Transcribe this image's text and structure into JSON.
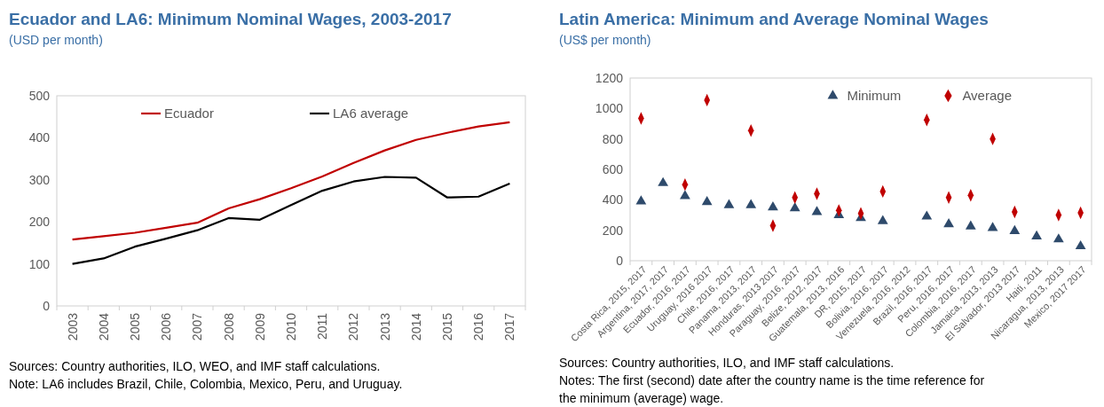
{
  "chart_data": [
    {
      "type": "line",
      "title": "Ecuador and LA6: Minimum Nominal Wages, 2003-2017",
      "subtitle": "(USD per month)",
      "categories": [
        "2003",
        "2004",
        "2005",
        "2006",
        "2007",
        "2008",
        "2009",
        "2010",
        "2011",
        "2012",
        "2013",
        "2014",
        "2015",
        "2016",
        "2017"
      ],
      "series": [
        {
          "name": "Ecuador",
          "color": "#c00000",
          "values": [
            158,
            166,
            174,
            186,
            198,
            232,
            254,
            280,
            308,
            340,
            370,
            395,
            412,
            427,
            437
          ]
        },
        {
          "name": "LA6 average",
          "color": "#000000",
          "values": [
            100,
            113,
            141,
            160,
            180,
            209,
            205,
            240,
            274,
            296,
            307,
            305,
            258,
            260,
            291
          ]
        }
      ],
      "ylim": [
        0,
        500
      ],
      "yticks": [
        0,
        100,
        200,
        300,
        400,
        500
      ],
      "grid": false,
      "legend": "top",
      "marker": "none",
      "annotations": [
        "Sources: Country authorities, ILO, WEO, and IMF staff calculations.",
        "Note: LA6 includes Brazil, Chile, Colombia, Mexico, Peru, and Uruguay."
      ]
    },
    {
      "type": "scatter",
      "title": "Latin America: Minimum and Average Nominal Wages",
      "subtitle": "(US$ per month)",
      "categories": [
        "Costa Rica, 2015, 2017",
        "Argentina, 2017, 2017",
        "Ecuador, 2016, 2017",
        "Uruguay, 2016 2017",
        "Chile, 2016, 2017",
        "Panama, 2013, 2017",
        "Honduras, 2013 2017",
        "Paraguay, 2016, 2017",
        "Belize, 2012, 2017",
        "Guatemala, 2013, 2016",
        "DR, 2015, 2017",
        "Bolivia, 2016, 2017",
        "Venezuela, 2016, 2012",
        "Brazil, 2016, 2017",
        "Peru, 2016, 2017",
        "Colombia, 2016, 2017",
        "Jamaica, 2013, 2013",
        "El Salvador, 2013 2017",
        "Haiti, 2011",
        "Nicaragua, 2013, 2013",
        "Mexico, 2017 2017"
      ],
      "series": [
        {
          "name": "Minimum",
          "color": "#2e4a6b",
          "marker": "triangle",
          "values": [
            390,
            510,
            425,
            385,
            365,
            365,
            350,
            345,
            320,
            300,
            280,
            260,
            null,
            290,
            240,
            225,
            215,
            195,
            160,
            140,
            95
          ]
        },
        {
          "name": "Average",
          "color": "#c00000",
          "marker": "diamond",
          "values": [
            935,
            null,
            500,
            1055,
            null,
            855,
            230,
            415,
            440,
            330,
            310,
            455,
            null,
            925,
            415,
            430,
            800,
            320,
            null,
            300,
            315
          ]
        }
      ],
      "ylim": [
        0,
        1200
      ],
      "yticks": [
        0,
        200,
        400,
        600,
        800,
        1000,
        1200
      ],
      "grid": false,
      "legend": "top right",
      "annotations": [
        "Sources: Country authorities, ILO, and IMF staff calculations.",
        "Notes: The first (second) date after the country name is the time reference for the minimum (average) wage."
      ]
    }
  ]
}
